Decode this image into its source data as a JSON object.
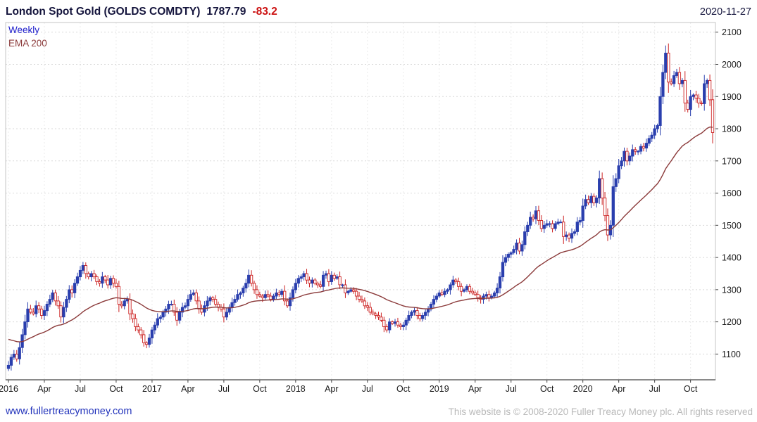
{
  "header": {
    "title": "London Spot Gold (GOLDS COMDTY)",
    "last_price": "1787.79",
    "change": "-83.2",
    "date": "2020-11-27"
  },
  "legend": {
    "timeframe": "Weekly",
    "overlay": "EMA 200"
  },
  "footer": {
    "site": "www.fullertreacymoney.com",
    "copyright": "This website is © 2008-2020 Fuller Treacy Money plc. All rights reserved"
  },
  "chart_data": {
    "type": "candlestick",
    "title": "London Spot Gold (GOLDS COMDTY)",
    "timeframe": "weekly",
    "last_price": 1787.79,
    "change": -83.2,
    "grid": true,
    "legend_position": "top-left",
    "y_ticks": [
      2100,
      2000,
      1900,
      1800,
      1700,
      1600,
      1500,
      1400,
      1300,
      1200,
      1100
    ],
    "y_range": [
      1020,
      2130
    ],
    "x_ticks": [
      {
        "label": "2016",
        "week": 0
      },
      {
        "label": "Apr",
        "week": 13
      },
      {
        "label": "Jul",
        "week": 26
      },
      {
        "label": "Oct",
        "week": 39
      },
      {
        "label": "2017",
        "week": 52
      },
      {
        "label": "Apr",
        "week": 65
      },
      {
        "label": "Jul",
        "week": 78
      },
      {
        "label": "Oct",
        "week": 91
      },
      {
        "label": "2018",
        "week": 104
      },
      {
        "label": "Apr",
        "week": 117
      },
      {
        "label": "Jul",
        "week": 130
      },
      {
        "label": "Oct",
        "week": 143
      },
      {
        "label": "2019",
        "week": 156
      },
      {
        "label": "Apr",
        "week": 169
      },
      {
        "label": "Jul",
        "week": 182
      },
      {
        "label": "Oct",
        "week": 195
      },
      {
        "label": "2020",
        "week": 208
      },
      {
        "label": "Apr",
        "week": 221
      },
      {
        "label": "Jul",
        "week": 234
      },
      {
        "label": "Oct",
        "week": 247
      }
    ],
    "weekly_closes": [
      1065,
      1090,
      1100,
      1085,
      1120,
      1160,
      1200,
      1240,
      1230,
      1225,
      1250,
      1240,
      1220,
      1235,
      1255,
      1270,
      1290,
      1265,
      1250,
      1215,
      1245,
      1270,
      1300,
      1290,
      1320,
      1340,
      1360,
      1375,
      1350,
      1340,
      1350,
      1340,
      1325,
      1320,
      1340,
      1330,
      1315,
      1335,
      1320,
      1310,
      1255,
      1250,
      1265,
      1270,
      1225,
      1210,
      1185,
      1175,
      1160,
      1135,
      1130,
      1150,
      1175,
      1190,
      1210,
      1215,
      1230,
      1240,
      1255,
      1255,
      1230,
      1205,
      1230,
      1245,
      1250,
      1270,
      1285,
      1290,
      1265,
      1240,
      1230,
      1250,
      1265,
      1275,
      1270,
      1255,
      1245,
      1240,
      1215,
      1230,
      1245,
      1260,
      1270,
      1285,
      1290,
      1305,
      1320,
      1345,
      1320,
      1300,
      1285,
      1280,
      1275,
      1285,
      1280,
      1270,
      1280,
      1290,
      1285,
      1295,
      1265,
      1250,
      1275,
      1300,
      1320,
      1335,
      1340,
      1350,
      1330,
      1320,
      1330,
      1320,
      1315,
      1310,
      1345,
      1350,
      1325,
      1345,
      1335,
      1340,
      1315,
      1315,
      1290,
      1295,
      1300,
      1295,
      1280,
      1270,
      1265,
      1250,
      1245,
      1230,
      1225,
      1220,
      1215,
      1205,
      1185,
      1175,
      1200,
      1195,
      1200,
      1190,
      1185,
      1190,
      1205,
      1220,
      1230,
      1235,
      1220,
      1210,
      1220,
      1230,
      1240,
      1255,
      1270,
      1280,
      1290,
      1285,
      1295,
      1300,
      1315,
      1330,
      1325,
      1310,
      1295,
      1300,
      1310,
      1295,
      1290,
      1285,
      1275,
      1270,
      1280,
      1285,
      1275,
      1280,
      1290,
      1305,
      1340,
      1385,
      1400,
      1410,
      1415,
      1425,
      1445,
      1420,
      1440,
      1480,
      1500,
      1525,
      1520,
      1545,
      1515,
      1490,
      1500,
      1505,
      1505,
      1490,
      1505,
      1510,
      1510,
      1465,
      1470,
      1460,
      1475,
      1480,
      1510,
      1515,
      1560,
      1580,
      1570,
      1590,
      1570,
      1585,
      1645,
      1585,
      1530,
      1470,
      1500,
      1620,
      1645,
      1685,
      1700,
      1730,
      1700,
      1715,
      1735,
      1730,
      1730,
      1745,
      1740,
      1755,
      1770,
      1780,
      1800,
      1810,
      1900,
      1975,
      2035,
      1945,
      1940,
      1965,
      1975,
      1940,
      1950,
      1880,
      1860,
      1900,
      1905,
      1895,
      1880,
      1878,
      1940,
      1950,
      1890,
      1788
    ],
    "ema": {
      "label": "EMA 200",
      "period_weeks": 41,
      "seed": 1150,
      "color": "#8b3a3a"
    },
    "colors": {
      "up": "#2a3fae",
      "down": "#cc2222",
      "grid": "#d9d9d9",
      "axis": "#444444",
      "tick_text": "#1a1a1a"
    }
  }
}
